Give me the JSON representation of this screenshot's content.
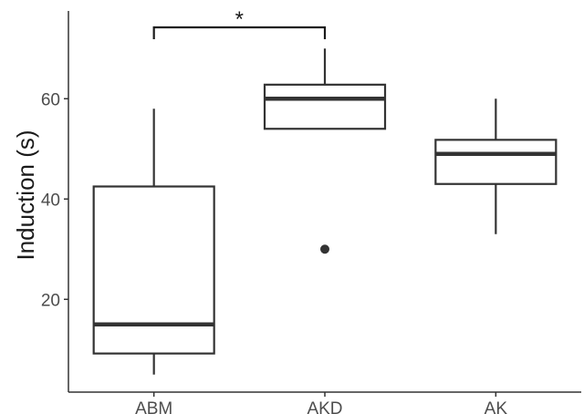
{
  "chart_data": {
    "type": "boxplot",
    "title": "",
    "xlabel": "",
    "ylabel": "Induction (s)",
    "ylim": [
      1.5,
      77.5
    ],
    "yticks": [
      20,
      40,
      60
    ],
    "grid": false,
    "legend": "none",
    "categories": [
      "ABM",
      "AKD",
      "AK"
    ],
    "boxes": [
      {
        "category": "ABM",
        "whisker_low": 5,
        "q1": 9.2,
        "median": 15,
        "q3": 42.5,
        "whisker_high": 58,
        "outliers": []
      },
      {
        "category": "AKD",
        "whisker_low": 54,
        "q1": 54,
        "median": 60,
        "q3": 62.8,
        "whisker_high": 70,
        "outliers": [
          30
        ]
      },
      {
        "category": "AK",
        "whisker_low": 33,
        "q1": 43,
        "median": 49,
        "q3": 51.8,
        "whisker_high": 60,
        "outliers": []
      }
    ],
    "annotations": [
      {
        "type": "significance",
        "from": "ABM",
        "to": "AKD",
        "label": "*"
      }
    ]
  },
  "colors": {
    "box_stroke": "#333333",
    "outlier": "#333333",
    "axis": "#333333",
    "background": "#ffffff"
  }
}
